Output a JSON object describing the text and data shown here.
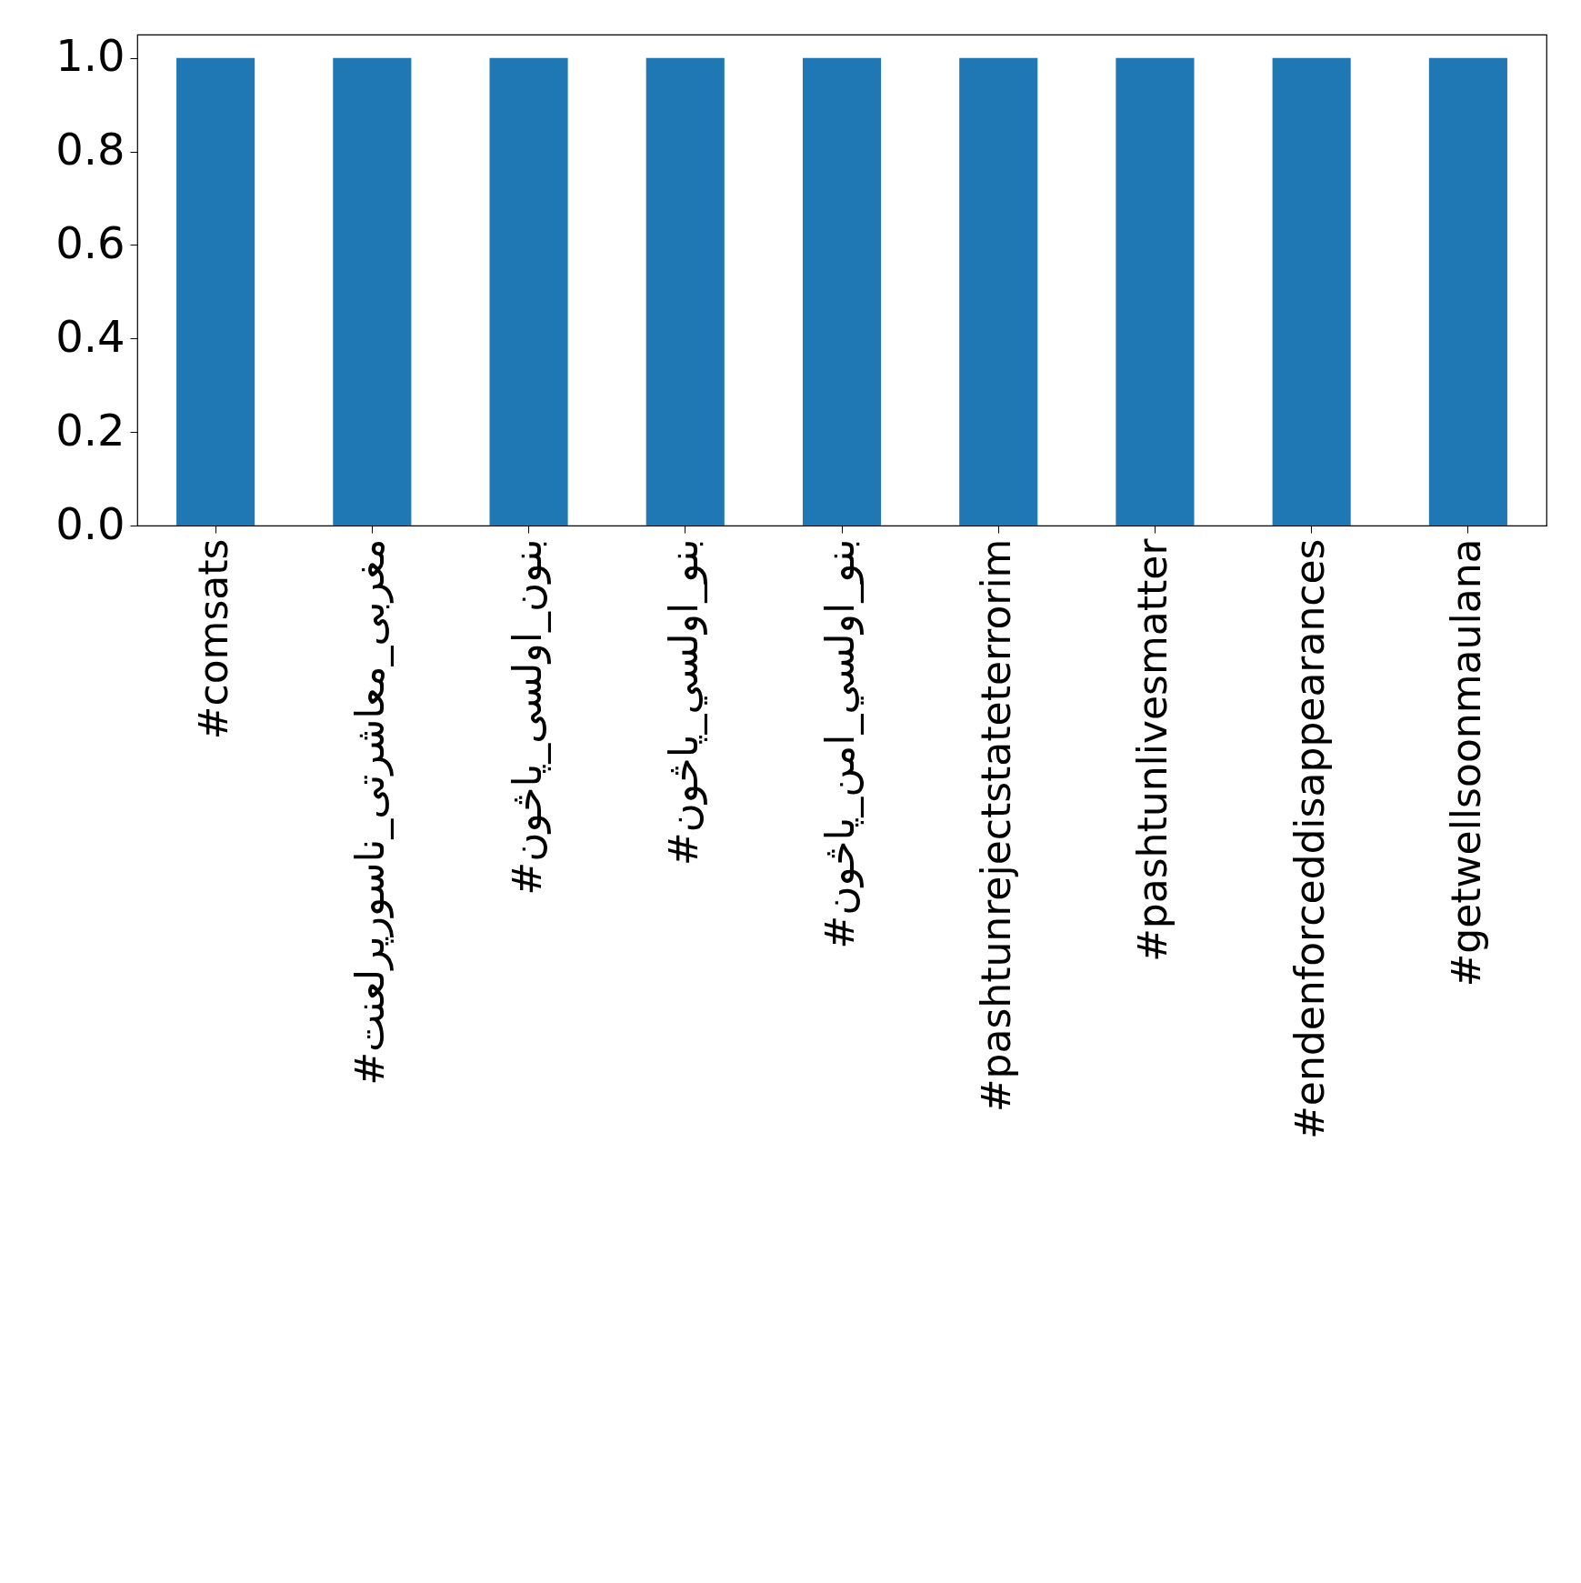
{
  "chart_data": {
    "type": "bar",
    "categories": [
      "#comsats",
      "#مغربی_معاشرتی_ناسورپرلعنت",
      "#بنون_اولسی_پاڅون",
      "#بنو_اولسي_پاڅون",
      "#بنو_اولسي_امن_پاڅون",
      "#pashtunrejectstateterrorim",
      "#pashtunlivesmatter",
      "#endenforceddisappearances",
      "#getwellsoonmaulana"
    ],
    "values": [
      1,
      1,
      1,
      1,
      1,
      1,
      1,
      1,
      1
    ],
    "color": "#1f77b4",
    "ylim": [
      0,
      1.05
    ],
    "yticks": [
      {
        "value": 0,
        "label": "0.0"
      },
      {
        "value": 0.2,
        "label": "0.2"
      },
      {
        "value": 0.4,
        "label": "0.4"
      },
      {
        "value": 0.6,
        "label": "0.6"
      },
      {
        "value": 0.8,
        "label": "0.8"
      },
      {
        "value": 1,
        "label": "1.0"
      }
    ],
    "grid": false
  }
}
